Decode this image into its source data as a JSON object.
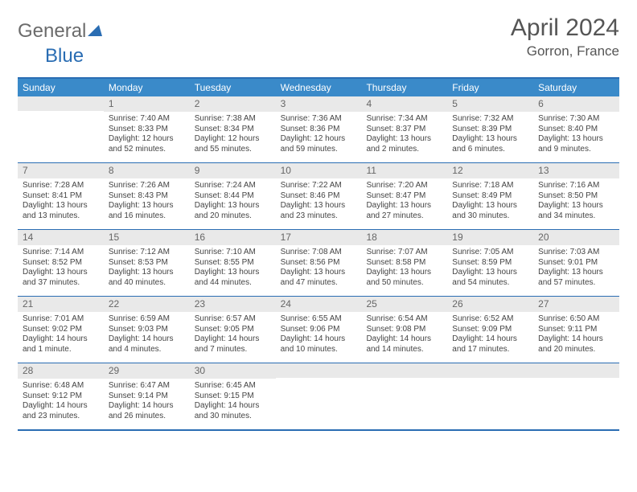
{
  "logo": {
    "text1": "General",
    "text2": "Blue"
  },
  "title": "April 2024",
  "location": "Gorron, France",
  "colors": {
    "accent": "#2a6db3",
    "header_bg": "#3a8ac9",
    "daynum_bg": "#e9e9e9",
    "text": "#444444",
    "title_text": "#555555"
  },
  "day_names": [
    "Sunday",
    "Monday",
    "Tuesday",
    "Wednesday",
    "Thursday",
    "Friday",
    "Saturday"
  ],
  "weeks": [
    [
      {
        "day": "",
        "sunrise": "",
        "sunset": "",
        "daylight": ""
      },
      {
        "day": "1",
        "sunrise": "Sunrise: 7:40 AM",
        "sunset": "Sunset: 8:33 PM",
        "daylight": "Daylight: 12 hours and 52 minutes."
      },
      {
        "day": "2",
        "sunrise": "Sunrise: 7:38 AM",
        "sunset": "Sunset: 8:34 PM",
        "daylight": "Daylight: 12 hours and 55 minutes."
      },
      {
        "day": "3",
        "sunrise": "Sunrise: 7:36 AM",
        "sunset": "Sunset: 8:36 PM",
        "daylight": "Daylight: 12 hours and 59 minutes."
      },
      {
        "day": "4",
        "sunrise": "Sunrise: 7:34 AM",
        "sunset": "Sunset: 8:37 PM",
        "daylight": "Daylight: 13 hours and 2 minutes."
      },
      {
        "day": "5",
        "sunrise": "Sunrise: 7:32 AM",
        "sunset": "Sunset: 8:39 PM",
        "daylight": "Daylight: 13 hours and 6 minutes."
      },
      {
        "day": "6",
        "sunrise": "Sunrise: 7:30 AM",
        "sunset": "Sunset: 8:40 PM",
        "daylight": "Daylight: 13 hours and 9 minutes."
      }
    ],
    [
      {
        "day": "7",
        "sunrise": "Sunrise: 7:28 AM",
        "sunset": "Sunset: 8:41 PM",
        "daylight": "Daylight: 13 hours and 13 minutes."
      },
      {
        "day": "8",
        "sunrise": "Sunrise: 7:26 AM",
        "sunset": "Sunset: 8:43 PM",
        "daylight": "Daylight: 13 hours and 16 minutes."
      },
      {
        "day": "9",
        "sunrise": "Sunrise: 7:24 AM",
        "sunset": "Sunset: 8:44 PM",
        "daylight": "Daylight: 13 hours and 20 minutes."
      },
      {
        "day": "10",
        "sunrise": "Sunrise: 7:22 AM",
        "sunset": "Sunset: 8:46 PM",
        "daylight": "Daylight: 13 hours and 23 minutes."
      },
      {
        "day": "11",
        "sunrise": "Sunrise: 7:20 AM",
        "sunset": "Sunset: 8:47 PM",
        "daylight": "Daylight: 13 hours and 27 minutes."
      },
      {
        "day": "12",
        "sunrise": "Sunrise: 7:18 AM",
        "sunset": "Sunset: 8:49 PM",
        "daylight": "Daylight: 13 hours and 30 minutes."
      },
      {
        "day": "13",
        "sunrise": "Sunrise: 7:16 AM",
        "sunset": "Sunset: 8:50 PM",
        "daylight": "Daylight: 13 hours and 34 minutes."
      }
    ],
    [
      {
        "day": "14",
        "sunrise": "Sunrise: 7:14 AM",
        "sunset": "Sunset: 8:52 PM",
        "daylight": "Daylight: 13 hours and 37 minutes."
      },
      {
        "day": "15",
        "sunrise": "Sunrise: 7:12 AM",
        "sunset": "Sunset: 8:53 PM",
        "daylight": "Daylight: 13 hours and 40 minutes."
      },
      {
        "day": "16",
        "sunrise": "Sunrise: 7:10 AM",
        "sunset": "Sunset: 8:55 PM",
        "daylight": "Daylight: 13 hours and 44 minutes."
      },
      {
        "day": "17",
        "sunrise": "Sunrise: 7:08 AM",
        "sunset": "Sunset: 8:56 PM",
        "daylight": "Daylight: 13 hours and 47 minutes."
      },
      {
        "day": "18",
        "sunrise": "Sunrise: 7:07 AM",
        "sunset": "Sunset: 8:58 PM",
        "daylight": "Daylight: 13 hours and 50 minutes."
      },
      {
        "day": "19",
        "sunrise": "Sunrise: 7:05 AM",
        "sunset": "Sunset: 8:59 PM",
        "daylight": "Daylight: 13 hours and 54 minutes."
      },
      {
        "day": "20",
        "sunrise": "Sunrise: 7:03 AM",
        "sunset": "Sunset: 9:01 PM",
        "daylight": "Daylight: 13 hours and 57 minutes."
      }
    ],
    [
      {
        "day": "21",
        "sunrise": "Sunrise: 7:01 AM",
        "sunset": "Sunset: 9:02 PM",
        "daylight": "Daylight: 14 hours and 1 minute."
      },
      {
        "day": "22",
        "sunrise": "Sunrise: 6:59 AM",
        "sunset": "Sunset: 9:03 PM",
        "daylight": "Daylight: 14 hours and 4 minutes."
      },
      {
        "day": "23",
        "sunrise": "Sunrise: 6:57 AM",
        "sunset": "Sunset: 9:05 PM",
        "daylight": "Daylight: 14 hours and 7 minutes."
      },
      {
        "day": "24",
        "sunrise": "Sunrise: 6:55 AM",
        "sunset": "Sunset: 9:06 PM",
        "daylight": "Daylight: 14 hours and 10 minutes."
      },
      {
        "day": "25",
        "sunrise": "Sunrise: 6:54 AM",
        "sunset": "Sunset: 9:08 PM",
        "daylight": "Daylight: 14 hours and 14 minutes."
      },
      {
        "day": "26",
        "sunrise": "Sunrise: 6:52 AM",
        "sunset": "Sunset: 9:09 PM",
        "daylight": "Daylight: 14 hours and 17 minutes."
      },
      {
        "day": "27",
        "sunrise": "Sunrise: 6:50 AM",
        "sunset": "Sunset: 9:11 PM",
        "daylight": "Daylight: 14 hours and 20 minutes."
      }
    ],
    [
      {
        "day": "28",
        "sunrise": "Sunrise: 6:48 AM",
        "sunset": "Sunset: 9:12 PM",
        "daylight": "Daylight: 14 hours and 23 minutes."
      },
      {
        "day": "29",
        "sunrise": "Sunrise: 6:47 AM",
        "sunset": "Sunset: 9:14 PM",
        "daylight": "Daylight: 14 hours and 26 minutes."
      },
      {
        "day": "30",
        "sunrise": "Sunrise: 6:45 AM",
        "sunset": "Sunset: 9:15 PM",
        "daylight": "Daylight: 14 hours and 30 minutes."
      },
      {
        "day": "",
        "sunrise": "",
        "sunset": "",
        "daylight": ""
      },
      {
        "day": "",
        "sunrise": "",
        "sunset": "",
        "daylight": ""
      },
      {
        "day": "",
        "sunrise": "",
        "sunset": "",
        "daylight": ""
      },
      {
        "day": "",
        "sunrise": "",
        "sunset": "",
        "daylight": ""
      }
    ]
  ]
}
